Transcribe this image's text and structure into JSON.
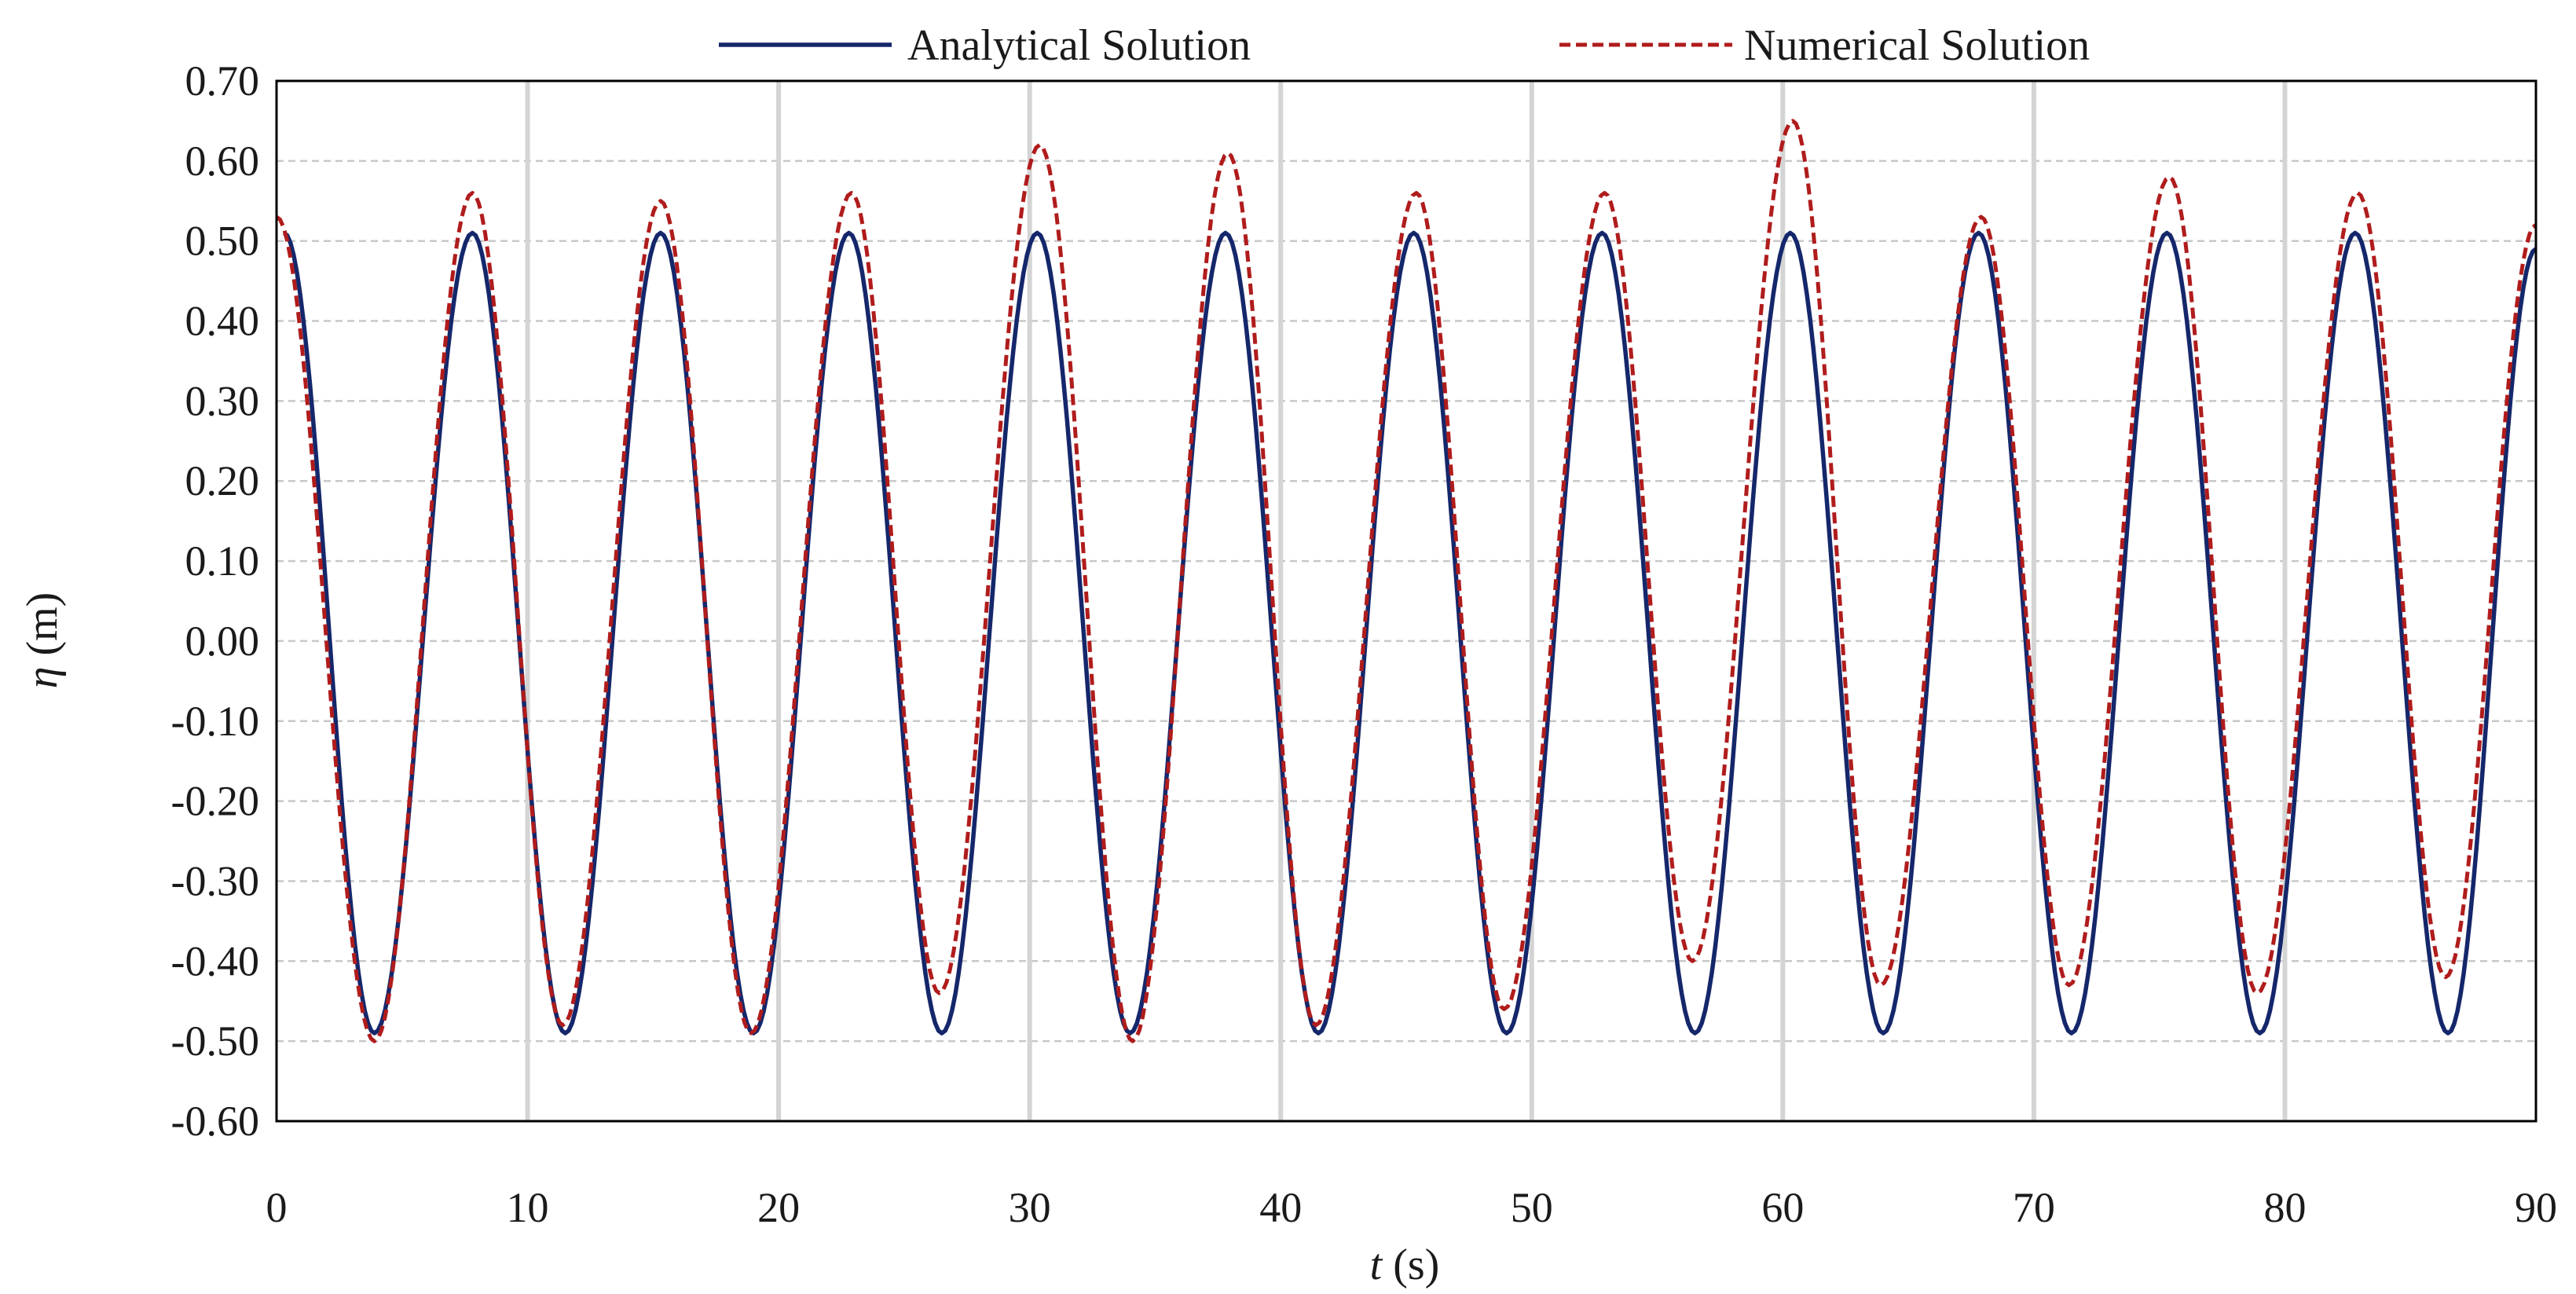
{
  "chart_data": {
    "type": "line",
    "title": "",
    "xlabel_var": "t",
    "xlabel_unit": " (s)",
    "ylabel_var": "η",
    "ylabel_unit": " (m)",
    "xlim": [
      0,
      90
    ],
    "ylim": [
      -0.6,
      0.7
    ],
    "xticks": [
      0,
      10,
      20,
      30,
      40,
      50,
      60,
      70,
      80,
      90
    ],
    "xtick_labels": [
      "0",
      "10",
      "20",
      "30",
      "40",
      "50",
      "60",
      "70",
      "80",
      "90"
    ],
    "yticks": [
      0.7,
      0.6,
      0.5,
      0.4,
      0.3,
      0.2,
      0.1,
      0.0,
      -0.1,
      -0.2,
      -0.3,
      -0.4,
      -0.5,
      -0.6
    ],
    "ytick_labels": [
      "0.70",
      "0.60",
      "0.50",
      "0.40",
      "0.30",
      "0.20",
      "0.10",
      "0.00",
      "-0.10",
      "-0.20",
      "-0.30",
      "-0.40",
      "-0.50",
      "-0.60"
    ],
    "grid": true,
    "legend_position": "top-center",
    "series": [
      {
        "name": "Analytical Solution",
        "color": "#15276b",
        "dash": "solid",
        "peaks": [
          [
            0.3,
            0.51
          ],
          [
            3.9,
            -0.49
          ],
          [
            7.8,
            0.51
          ],
          [
            11.5,
            -0.49
          ],
          [
            15.3,
            0.51
          ],
          [
            19.0,
            -0.49
          ],
          [
            22.8,
            0.51
          ],
          [
            26.5,
            -0.49
          ],
          [
            30.3,
            0.51
          ],
          [
            34.0,
            -0.49
          ],
          [
            37.8,
            0.51
          ],
          [
            41.5,
            -0.49
          ],
          [
            45.3,
            0.51
          ],
          [
            49.0,
            -0.49
          ],
          [
            52.8,
            0.51
          ],
          [
            56.5,
            -0.49
          ],
          [
            60.3,
            0.51
          ],
          [
            64.0,
            -0.49
          ],
          [
            67.8,
            0.51
          ],
          [
            71.5,
            -0.49
          ],
          [
            75.3,
            0.51
          ],
          [
            79.0,
            -0.49
          ],
          [
            82.8,
            0.51
          ],
          [
            86.5,
            -0.49
          ],
          [
            90.0,
            0.49
          ]
        ]
      },
      {
        "name": "Numerical Solution",
        "color": "#b01c1c",
        "dash": "dashed",
        "peaks": [
          [
            0.0,
            0.53
          ],
          [
            3.9,
            -0.5
          ],
          [
            7.8,
            0.56
          ],
          [
            11.4,
            -0.48
          ],
          [
            15.3,
            0.55
          ],
          [
            18.9,
            -0.49
          ],
          [
            22.9,
            0.56
          ],
          [
            26.4,
            -0.44
          ],
          [
            30.4,
            0.62
          ],
          [
            34.1,
            -0.5
          ],
          [
            37.9,
            0.61
          ],
          [
            41.4,
            -0.48
          ],
          [
            45.4,
            0.56
          ],
          [
            48.9,
            -0.46
          ],
          [
            52.9,
            0.56
          ],
          [
            56.4,
            -0.4
          ],
          [
            60.4,
            0.65
          ],
          [
            63.9,
            -0.43
          ],
          [
            67.9,
            0.53
          ],
          [
            71.4,
            -0.43
          ],
          [
            75.4,
            0.58
          ],
          [
            78.9,
            -0.44
          ],
          [
            82.9,
            0.56
          ],
          [
            86.4,
            -0.42
          ],
          [
            90.0,
            0.52
          ]
        ]
      }
    ]
  }
}
